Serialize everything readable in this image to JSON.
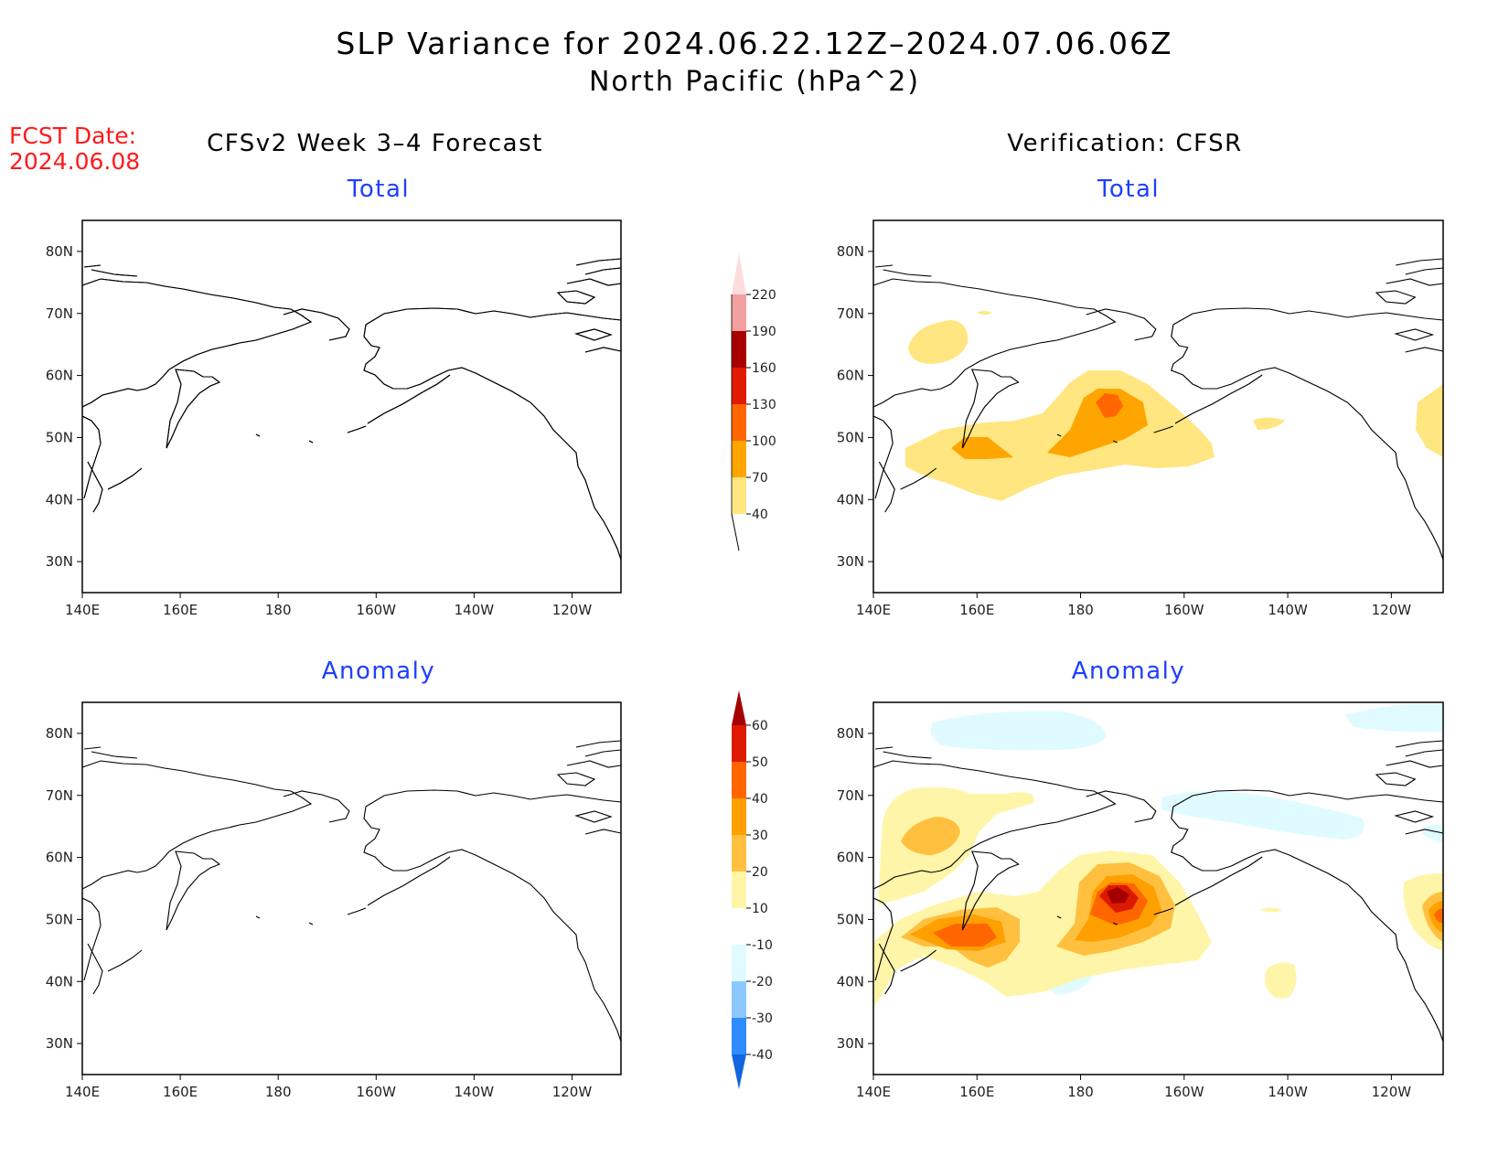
{
  "title": {
    "line1": "SLP Variance for 2024.06.22.12Z–2024.07.06.06Z",
    "line2": "North Pacific (hPa^2)"
  },
  "fcst": {
    "label": "FCST Date:",
    "date": "2024.06.08"
  },
  "columns": {
    "left": "CFSv2 Week 3–4 Forecast",
    "right": "Verification: CFSR"
  },
  "panels": [
    {
      "id": "fc-total",
      "subtitle": "Total",
      "col": "left",
      "row": "top"
    },
    {
      "id": "ver-total",
      "subtitle": "Total",
      "col": "right",
      "row": "top"
    },
    {
      "id": "fc-anom",
      "subtitle": "Anomaly",
      "col": "left",
      "row": "bottom"
    },
    {
      "id": "ver-anom",
      "subtitle": "Anomaly",
      "col": "right",
      "row": "bottom"
    }
  ],
  "axes": {
    "lon_labels": [
      "140E",
      "160E",
      "180",
      "160W",
      "140W",
      "120W"
    ],
    "lon_values": [
      140,
      160,
      180,
      200,
      220,
      240
    ],
    "lat_labels": [
      "80N",
      "70N",
      "60N",
      "50N",
      "40N",
      "30N"
    ],
    "lat_values": [
      80,
      70,
      60,
      50,
      40,
      30
    ],
    "lon_range": [
      140,
      250
    ],
    "lat_range": [
      25,
      85
    ]
  },
  "colorbars": {
    "total": {
      "levels": [
        "40",
        "70",
        "100",
        "130",
        "160",
        "190",
        "220"
      ],
      "colors": [
        "#ffe680",
        "#ffa500",
        "#ff6600",
        "#e01b00",
        "#a80000",
        "#f2a0a0",
        "#fddcdc"
      ]
    },
    "anomaly": {
      "levels": [
        "-40",
        "-30",
        "-20",
        "-10",
        "10",
        "20",
        "30",
        "40",
        "50",
        "60"
      ],
      "colors": [
        "#1266e0",
        "#2f8cff",
        "#8cc8ff",
        "#e0fbff",
        "#ffffff",
        "#fff5a8",
        "#ffc040",
        "#ff9f00",
        "#ff6600",
        "#dd1a00",
        "#a50000"
      ]
    }
  }
}
